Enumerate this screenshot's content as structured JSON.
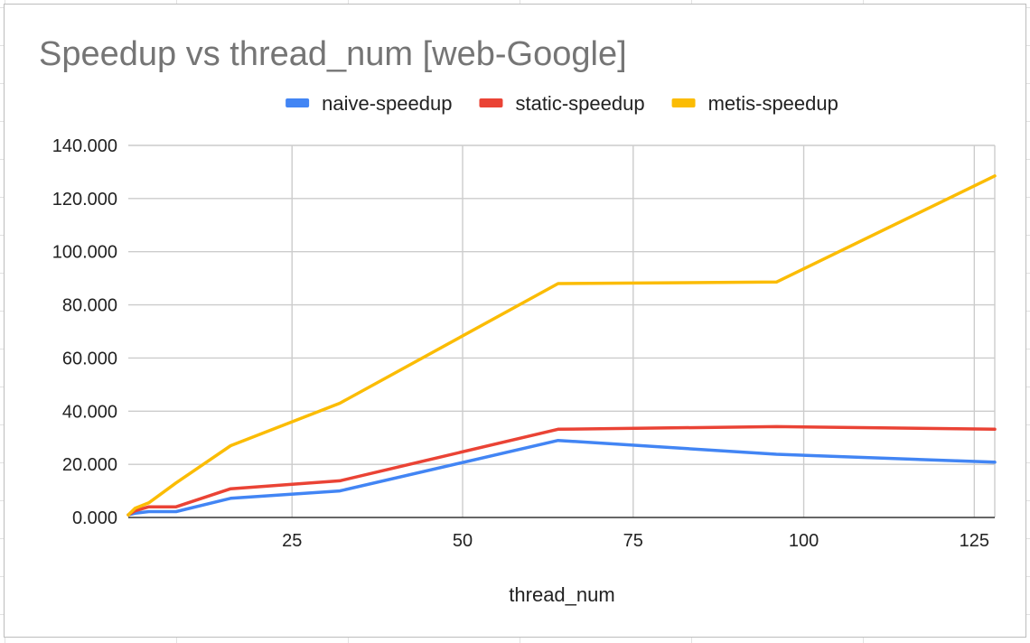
{
  "chart_data": {
    "type": "line",
    "title": "Speedup vs thread_num [web-Google]",
    "xlabel": "thread_num",
    "ylabel": "",
    "xlim": [
      1,
      128
    ],
    "ylim": [
      0,
      140
    ],
    "grid": true,
    "legend_position": "top",
    "x_ticks": [
      {
        "value": 25,
        "label": "25"
      },
      {
        "value": 50,
        "label": "50"
      },
      {
        "value": 75,
        "label": "75"
      },
      {
        "value": 100,
        "label": "100"
      },
      {
        "value": 125,
        "label": "125"
      }
    ],
    "y_ticks": [
      {
        "value": 0,
        "label": "0.000"
      },
      {
        "value": 20,
        "label": "20.000"
      },
      {
        "value": 40,
        "label": "40.000"
      },
      {
        "value": 60,
        "label": "60.000"
      },
      {
        "value": 80,
        "label": "80.000"
      },
      {
        "value": 100,
        "label": "100.000"
      },
      {
        "value": 120,
        "label": "120.000"
      },
      {
        "value": 140,
        "label": "140.000"
      }
    ],
    "x": [
      1,
      2,
      4,
      8,
      16,
      32,
      64,
      96,
      128
    ],
    "series": [
      {
        "name": "naive-speedup",
        "color": "#4285f4",
        "values": [
          1.0,
          1.6,
          2.2,
          2.2,
          7.2,
          10.0,
          29.0,
          23.8,
          20.8
        ]
      },
      {
        "name": "static-speedup",
        "color": "#ea4335",
        "values": [
          1.0,
          2.5,
          4.0,
          4.0,
          10.8,
          13.8,
          33.2,
          34.2,
          33.2
        ]
      },
      {
        "name": "metis-speedup",
        "color": "#fbbc04",
        "values": [
          1.0,
          3.5,
          5.5,
          13.0,
          27.0,
          43.0,
          88.0,
          88.6,
          128.5
        ]
      }
    ]
  }
}
